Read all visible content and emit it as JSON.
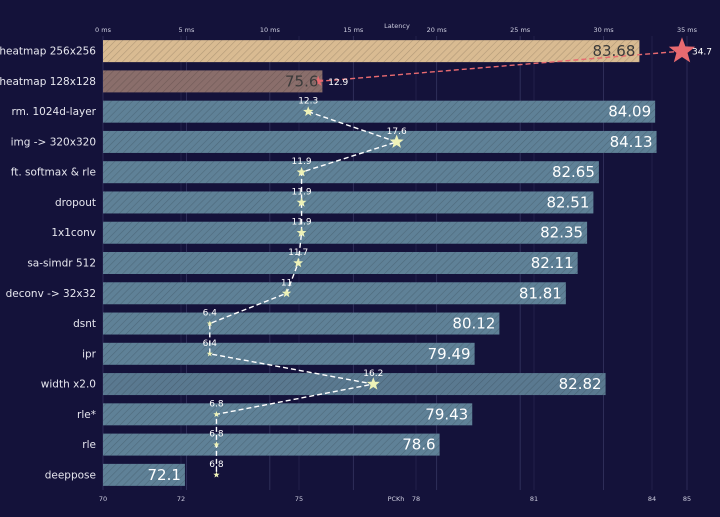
{
  "chart_data": {
    "type": "bar",
    "xlabel": "PCKh",
    "x2label": "Latency",
    "xlim": [
      70,
      85
    ],
    "x2lim": [
      0,
      35
    ],
    "xticks": [
      70,
      72,
      75,
      78,
      81,
      84,
      85
    ],
    "x2ticks": [
      "0 ms",
      "5 ms",
      "10 ms",
      "15 ms",
      "20 ms",
      "25 ms",
      "30 ms",
      "35 ms"
    ],
    "x2tick_values": [
      0,
      5,
      10,
      15,
      20,
      25,
      30,
      35
    ],
    "categories": [
      "heatmap 256x256",
      "heatmap 128x128",
      "rm. 1024d-layer",
      "img -> 320x320",
      "ft. softmax & rle",
      "dropout",
      "1x1conv",
      "sa-simdr 512",
      "deconv -> 32x32",
      "dsnt",
      "ipr",
      "width x2.0",
      "rle*",
      "rle",
      "deeppose"
    ],
    "values": [
      83.68,
      75.6,
      84.09,
      84.13,
      82.65,
      82.51,
      82.35,
      82.11,
      81.81,
      80.12,
      79.49,
      82.82,
      79.43,
      78.6,
      72.1
    ],
    "value_labels": [
      "83.68",
      "75.6",
      "84.09",
      "84.13",
      "82.65",
      "82.51",
      "82.35",
      "82.11",
      "81.81",
      "80.12",
      "79.49",
      "82.82",
      "79.43",
      "78.6",
      "72.1"
    ],
    "latency_ms": [
      34.7,
      12.9,
      12.3,
      17.6,
      11.9,
      11.9,
      11.9,
      11.7,
      11,
      6.4,
      6.4,
      16.2,
      6.8,
      6.8,
      6.8
    ],
    "latency_labels": [
      "34.7",
      "12.9",
      "12.3",
      "17.6",
      "11.9",
      "11.9",
      "11.9",
      "11.7",
      "11",
      "6.4",
      "6.4",
      "16.2",
      "6.8",
      "6.8",
      "6.8"
    ],
    "grid": true,
    "colors": {
      "background": "#14123a",
      "bar": "#5f8197",
      "bar_heatmap_256": "#d9bb92",
      "bar_heatmap_128": "#8a6e6b",
      "bar_width": "#5a7990",
      "star": "#eef2b8",
      "star_heatmap": "#e86a70",
      "line": "#ffffff",
      "line_heatmap": "#e86a70"
    }
  }
}
